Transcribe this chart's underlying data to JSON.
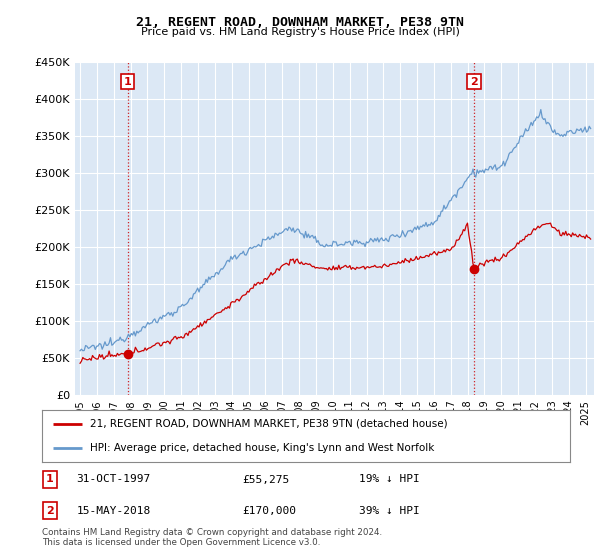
{
  "title": "21, REGENT ROAD, DOWNHAM MARKET, PE38 9TN",
  "subtitle": "Price paid vs. HM Land Registry's House Price Index (HPI)",
  "ylabel_ticks": [
    "£0",
    "£50K",
    "£100K",
    "£150K",
    "£200K",
    "£250K",
    "£300K",
    "£350K",
    "£400K",
    "£450K"
  ],
  "ylabel_values": [
    0,
    50000,
    100000,
    150000,
    200000,
    250000,
    300000,
    350000,
    400000,
    450000
  ],
  "ylim": [
    0,
    450000
  ],
  "xlim_start": 1994.7,
  "xlim_end": 2025.5,
  "sale1_x": 1997.83,
  "sale1_y": 55275,
  "sale1_label": "31-OCT-1997",
  "sale1_price": "£55,275",
  "sale1_hpi": "19% ↓ HPI",
  "sale2_x": 2018.37,
  "sale2_y": 170000,
  "sale2_label": "15-MAY-2018",
  "sale2_price": "£170,000",
  "sale2_hpi": "39% ↓ HPI",
  "legend_line1": "21, REGENT ROAD, DOWNHAM MARKET, PE38 9TN (detached house)",
  "legend_line2": "HPI: Average price, detached house, King's Lynn and West Norfolk",
  "footer": "Contains HM Land Registry data © Crown copyright and database right 2024.\nThis data is licensed under the Open Government Licence v3.0.",
  "red_color": "#CC0000",
  "blue_color": "#6699CC",
  "bg_color": "#FFFFFF",
  "plot_bg_color": "#DCE8F5",
  "grid_color": "#FFFFFF"
}
